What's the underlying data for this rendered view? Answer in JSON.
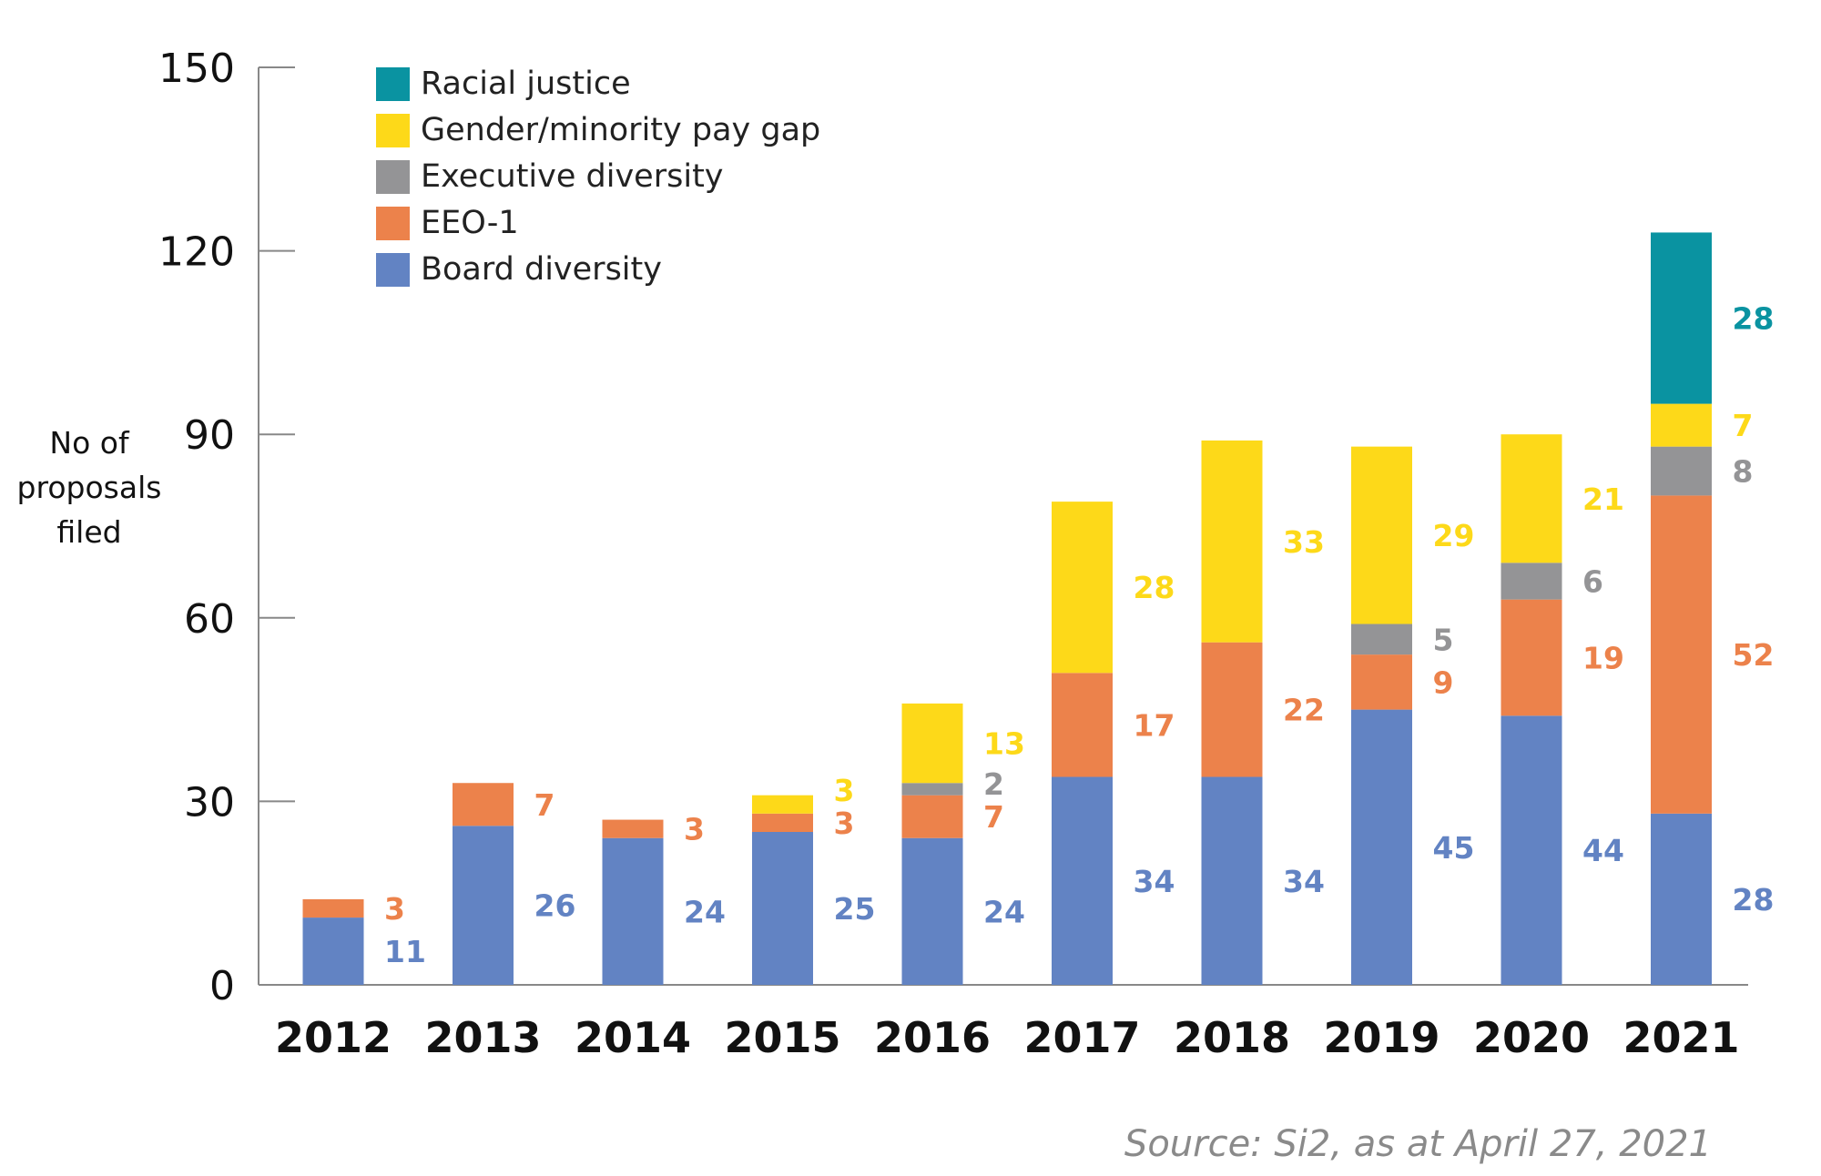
{
  "chart_data": {
    "type": "bar",
    "stacked": true,
    "categories": [
      "2012",
      "2013",
      "2014",
      "2015",
      "2016",
      "2017",
      "2018",
      "2019",
      "2020",
      "2021"
    ],
    "series": [
      {
        "name": "Board diversity",
        "color": "#6283c3",
        "values": [
          11,
          26,
          24,
          25,
          24,
          34,
          34,
          45,
          44,
          28
        ]
      },
      {
        "name": "EEO-1",
        "color": "#ec824b",
        "values": [
          3,
          7,
          3,
          3,
          7,
          17,
          22,
          9,
          19,
          52
        ]
      },
      {
        "name": "Executive diversity",
        "color": "#949496",
        "values": [
          0,
          0,
          0,
          0,
          2,
          0,
          0,
          5,
          6,
          8
        ]
      },
      {
        "name": "Gender/minority pay gap",
        "color": "#fdd919",
        "values": [
          0,
          0,
          0,
          3,
          13,
          28,
          33,
          29,
          21,
          7
        ]
      },
      {
        "name": "Racial justice",
        "color": "#0a93a1",
        "values": [
          0,
          0,
          0,
          0,
          0,
          0,
          0,
          0,
          0,
          28
        ]
      }
    ],
    "legend_order": [
      "Racial justice",
      "Gender/minority pay gap",
      "Executive diversity",
      "EEO-1",
      "Board diversity"
    ],
    "legend_position": "top-left",
    "ylabel_lines": [
      "No of",
      "proposals",
      "filed"
    ],
    "xlabel": "",
    "ylim": [
      0,
      150
    ],
    "yticks": [
      0,
      30,
      60,
      90,
      120,
      150
    ],
    "grid": false
  },
  "source": "Source: Si2, as at April 27, 2021"
}
